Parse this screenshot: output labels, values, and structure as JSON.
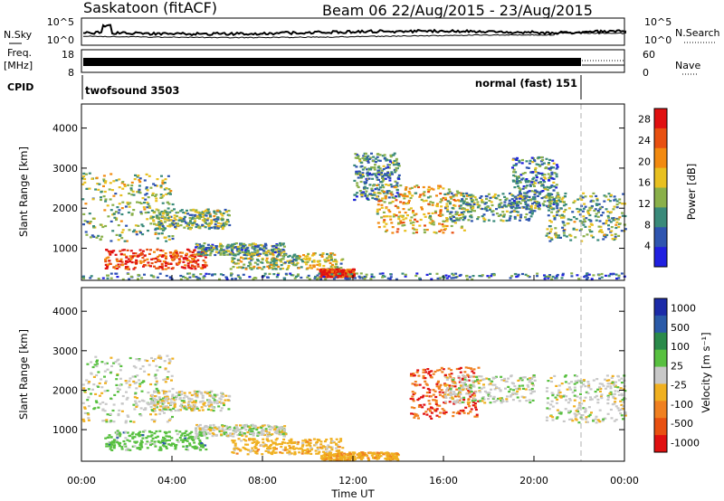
{
  "header": {
    "site": "Saskatoon (fitACF)",
    "beam_range": "Beam 06  22/Aug/2015 - 23/Aug/2015"
  },
  "sky_panel": {
    "left_label": "N.Sky",
    "right_label": "N.Search",
    "ticks": [
      "10^5",
      "10^0"
    ]
  },
  "freq_panel": {
    "left_label_line1": "Freq.",
    "left_label_line2": "[MHz]",
    "left_ticks": [
      "18",
      "8"
    ],
    "right_ticks": [
      "60",
      "0"
    ],
    "right_label": "Nave"
  },
  "cpid_panel": {
    "label": "CPID",
    "modes": [
      "twofsound 3503",
      "normal (fast) 151"
    ]
  },
  "colors": {
    "power_scale": [
      "#2020e0",
      "#2f55b0",
      "#3a8a7a",
      "#8ab04a",
      "#e8c020",
      "#f28a10",
      "#e85010",
      "#e01010"
    ],
    "velocity_scale": [
      "#1c2ba8",
      "#2a5aa8",
      "#2a8a4a",
      "#58c040",
      "#c8c8c8",
      "#f0b020",
      "#f08020",
      "#e85010",
      "#e01010"
    ],
    "axis": "#000000",
    "divider": "#b0b0b0"
  },
  "chart_data": [
    {
      "type": "heatmap",
      "title": "",
      "xlabel": "",
      "ylabel": "Slant Range [km]",
      "xlim": [
        0,
        24
      ],
      "ylim": [
        200,
        4600
      ],
      "y_ticks": [
        "1000",
        "2000",
        "3000",
        "4000"
      ],
      "x_ticks": [
        "00:00",
        "04:00",
        "08:00",
        "12:00",
        "16:00",
        "20:00",
        "00:00"
      ],
      "colorbar": {
        "label": "Power [dB]",
        "ticks": [
          "4",
          "8",
          "12",
          "16",
          "20",
          "24",
          "28"
        ],
        "range": [
          0,
          30
        ]
      },
      "echo_bands": [
        {
          "t": [
            0.0,
            4.0
          ],
          "r": [
            1200,
            2900
          ],
          "p": 13
        },
        {
          "t": [
            1.0,
            5.5
          ],
          "r": [
            500,
            1000
          ],
          "p": 26
        },
        {
          "t": [
            3.0,
            6.5
          ],
          "r": [
            1500,
            2000
          ],
          "p": 12
        },
        {
          "t": [
            5.0,
            9.0
          ],
          "r": [
            850,
            1150
          ],
          "p": 10
        },
        {
          "t": [
            6.5,
            11.5
          ],
          "r": [
            500,
            900
          ],
          "p": 14
        },
        {
          "t": [
            10.5,
            12.0
          ],
          "r": [
            300,
            500
          ],
          "p": 27
        },
        {
          "t": [
            12.0,
            14.0
          ],
          "r": [
            2200,
            3400
          ],
          "p": 9
        },
        {
          "t": [
            13.0,
            17.0
          ],
          "r": [
            1400,
            2600
          ],
          "p": 18
        },
        {
          "t": [
            16.0,
            20.0
          ],
          "r": [
            1700,
            2400
          ],
          "p": 11
        },
        {
          "t": [
            19.0,
            21.0
          ],
          "r": [
            2000,
            3300
          ],
          "p": 9
        },
        {
          "t": [
            20.5,
            24.0
          ],
          "r": [
            1200,
            2400
          ],
          "p": 12
        },
        {
          "t": [
            0.0,
            24.0
          ],
          "r": [
            250,
            400
          ],
          "p": 8
        }
      ]
    },
    {
      "type": "heatmap",
      "title": "",
      "xlabel": "Time UT",
      "ylabel": "Slant Range [km]",
      "xlim": [
        0,
        24
      ],
      "ylim": [
        200,
        4600
      ],
      "y_ticks": [
        "1000",
        "2000",
        "3000",
        "4000"
      ],
      "x_ticks": [
        "00:00",
        "04:00",
        "08:00",
        "12:00",
        "16:00",
        "20:00",
        "00:00"
      ],
      "colorbar": {
        "label": "Velocity [m s⁻¹]",
        "ticks": [
          "1000",
          "500",
          "100",
          "25",
          "-25",
          "-100",
          "-500",
          "-1000"
        ],
        "range": [
          -1000,
          1000
        ]
      },
      "echo_bands": [
        {
          "t": [
            0.0,
            4.0
          ],
          "r": [
            1200,
            2900
          ],
          "v": 0
        },
        {
          "t": [
            1.0,
            5.5
          ],
          "r": [
            500,
            1000
          ],
          "v": 60
        },
        {
          "t": [
            3.0,
            6.5
          ],
          "r": [
            1500,
            2000
          ],
          "v": 0
        },
        {
          "t": [
            5.0,
            9.0
          ],
          "r": [
            850,
            1150
          ],
          "v": 0
        },
        {
          "t": [
            6.5,
            11.5
          ],
          "r": [
            400,
            800
          ],
          "v": -60
        },
        {
          "t": [
            10.5,
            14.0
          ],
          "r": [
            250,
            450
          ],
          "v": -80
        },
        {
          "t": [
            14.5,
            17.5
          ],
          "r": [
            1300,
            2600
          ],
          "v": -450
        },
        {
          "t": [
            16.0,
            20.0
          ],
          "r": [
            1700,
            2400
          ],
          "v": 0
        },
        {
          "t": [
            20.5,
            24.0
          ],
          "r": [
            1200,
            2400
          ],
          "v": 0
        }
      ]
    }
  ]
}
